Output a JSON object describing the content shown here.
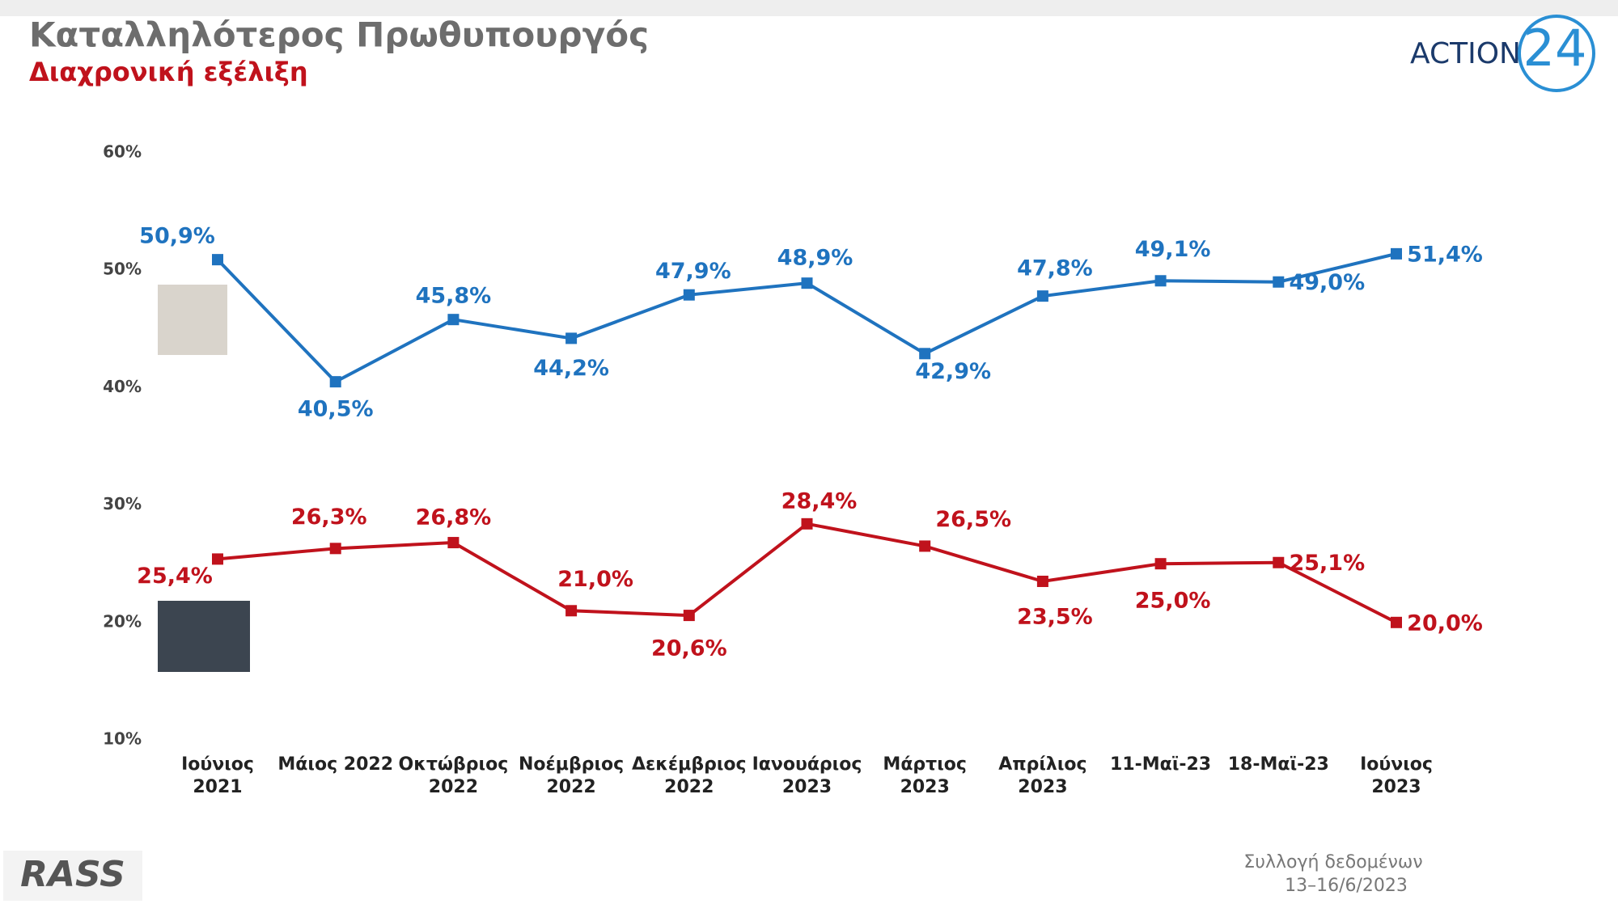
{
  "header": {
    "title": "Καταλληλότερος Πρωθυπουργός",
    "subtitle": "Διαχρονική εξέλιξη",
    "logo": "ACTION",
    "logo_number": "24"
  },
  "footer": {
    "brand": "RASS",
    "note": "Συλλογή δεδομένων",
    "dates": "13–16/6/2023"
  },
  "chart_data": {
    "type": "line",
    "categories": [
      "Ιούνιος 2021",
      "Μάιος 2022",
      "Οκτώβριος\n2022",
      "Νοέμβριος\n2022",
      "Δεκέμβριος\n2022",
      "Ιανουάριος\n2023",
      "Μάρτιος\n2023",
      "Απρίλιος\n2023",
      "11-Μαϊ-23",
      "18-Μαϊ-23",
      "Ιούνιος 2023"
    ],
    "series": [
      {
        "color": "#1f73bf",
        "values": [
          50.9,
          40.5,
          45.8,
          44.2,
          47.9,
          48.9,
          42.9,
          47.8,
          49.1,
          49.0,
          51.4
        ],
        "value_labels": [
          "50,9%",
          "40,5%",
          "45,8%",
          "44,2%",
          "47,9%",
          "48,9%",
          "42,9%",
          "47,8%",
          "49,1%",
          "49,0%",
          "51,4%"
        ]
      },
      {
        "color": "#c0121c",
        "values": [
          25.4,
          26.3,
          26.8,
          21.0,
          20.6,
          28.4,
          26.5,
          23.5,
          25.0,
          25.1,
          20.0
        ],
        "value_labels": [
          "25,4%",
          "26,3%",
          "26,8%",
          "21,0%",
          "20,6%",
          "28,4%",
          "26,5%",
          "23,5%",
          "25,0%",
          "25,1%",
          "20,0%"
        ]
      }
    ],
    "ylim": [
      10,
      60
    ],
    "yticks": [
      {
        "value": 10,
        "label": "10%"
      },
      {
        "value": 20,
        "label": "20%"
      },
      {
        "value": 30,
        "label": "30%"
      },
      {
        "value": 40,
        "label": "40%"
      },
      {
        "value": 50,
        "label": "50%"
      },
      {
        "value": 60,
        "label": "60%"
      }
    ],
    "grid": false
  }
}
